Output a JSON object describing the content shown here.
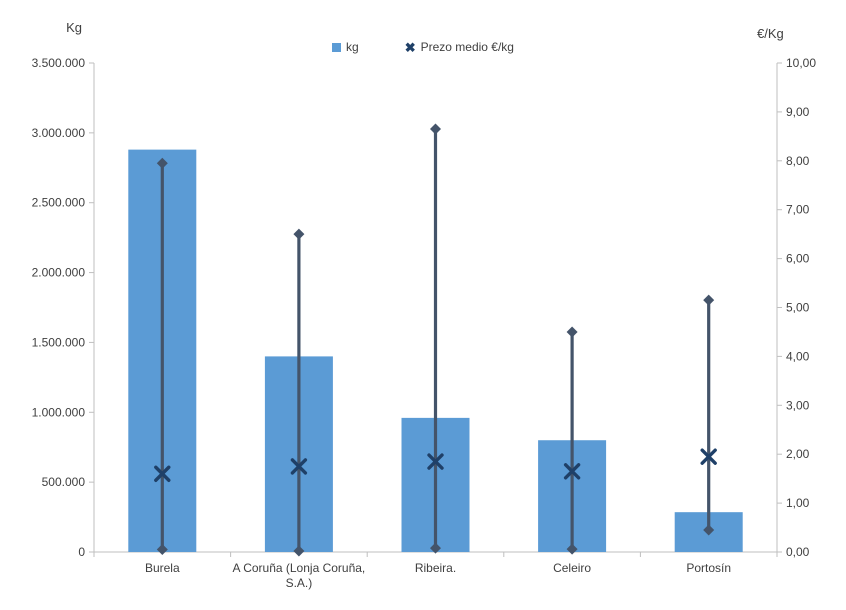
{
  "chart_data": {
    "type": "bar",
    "title": "",
    "categories": [
      "Burela",
      "A Coruña (Lonja Coruña, S.A.)",
      "Ribeira.",
      "Celeiro",
      "Portosín"
    ],
    "category_label_lines": [
      [
        "Burela"
      ],
      [
        "A Coruña (Lonja Coruña,",
        "S.A.)"
      ],
      [
        "Ribeira."
      ],
      [
        "Celeiro"
      ],
      [
        "Portosín"
      ]
    ],
    "series": [
      {
        "name": "kg",
        "kind": "bar",
        "axis": "left",
        "color": "#5B9BD5",
        "values": [
          2880000,
          1400000,
          960000,
          800000,
          285000
        ]
      },
      {
        "name": "Prezo medio €/kg",
        "kind": "hilo-mean",
        "axis": "right",
        "line_color": "#44546A",
        "marker_color": "#1F4068",
        "mean": [
          1.6,
          1.75,
          1.85,
          1.65,
          1.95
        ],
        "max": [
          7.95,
          6.5,
          8.65,
          4.5,
          5.15
        ],
        "min": [
          0.05,
          0.02,
          0.08,
          0.06,
          0.45
        ]
      }
    ],
    "left_axis": {
      "title": "Kg",
      "min": 0,
      "max": 3500000,
      "step": 500000,
      "tick_labels": [
        "0",
        "500.000",
        "1.000.000",
        "1.500.000",
        "2.000.000",
        "2.500.000",
        "3.000.000",
        "3.500.000"
      ]
    },
    "right_axis": {
      "title": "€/Kg",
      "min": 0,
      "max": 10,
      "step": 1,
      "tick_labels": [
        "0,00",
        "1,00",
        "2,00",
        "3,00",
        "4,00",
        "5,00",
        "6,00",
        "7,00",
        "8,00",
        "9,00",
        "10,00"
      ]
    },
    "legend": {
      "position": "top",
      "items": [
        {
          "label": "kg",
          "swatch": "square",
          "color": "#5B9BD5"
        },
        {
          "label": "Prezo medio €/kg",
          "swatch": "x",
          "color": "#1F4068"
        }
      ]
    },
    "style": {
      "axis_line_color": "#BFBFBF",
      "text_color": "#3F3F3F",
      "grid": "off"
    }
  }
}
